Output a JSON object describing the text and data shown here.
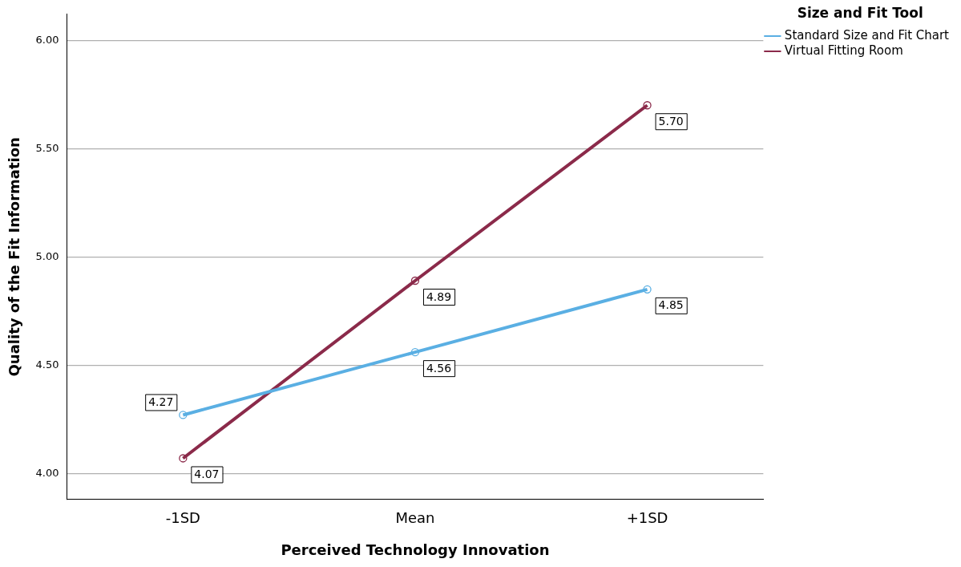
{
  "chart_data": {
    "type": "line",
    "xlabel": "Perceived Technology Innovation",
    "ylabel": "Quality of the Fit Information",
    "legend_title": "Size and Fit Tool",
    "categories": [
      "-1SD",
      "Mean",
      "+1SD"
    ],
    "series": [
      {
        "name": "Standard Size and Fit Chart",
        "color": "#5aafe3",
        "values": [
          4.27,
          4.56,
          4.85
        ],
        "value_labels": [
          "4.27",
          "4.56",
          "4.85"
        ]
      },
      {
        "name": "Virtual Fitting Room",
        "color": "#8b2a4a",
        "values": [
          4.07,
          4.89,
          5.7
        ],
        "value_labels": [
          "4.07",
          "4.89",
          "5.70"
        ]
      }
    ],
    "ylim": [
      3.88,
      6.12
    ],
    "yticks": [
      {
        "value": 4,
        "label": "4.00"
      },
      {
        "value": 4.5,
        "label": "4.50"
      },
      {
        "value": 5,
        "label": "5.00"
      },
      {
        "value": 5.5,
        "label": "5.50"
      },
      {
        "value": 6,
        "label": "6.00"
      }
    ],
    "grid": "y",
    "legend": "top right",
    "marker": "circle",
    "line_style": "solid"
  }
}
